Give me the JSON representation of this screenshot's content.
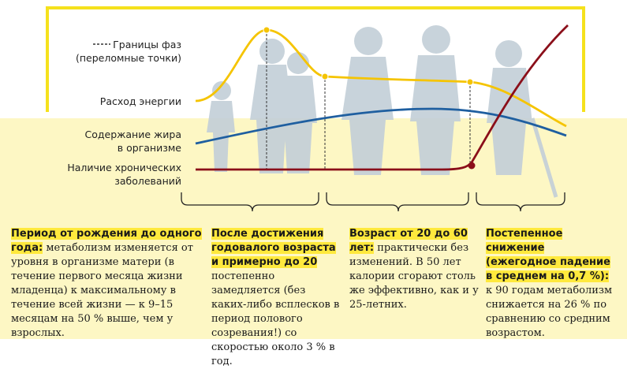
{
  "legend": {
    "phases_line1": "Границы фаз",
    "phases_line2": "(переломные точки)",
    "energy": "Расход энергии",
    "fat_line1": "Содержание жира",
    "fat_line2": "в организме",
    "chronic_line1": "Наличие хронических",
    "chronic_line2": "заболеваний"
  },
  "colors": {
    "energy": "#f5c400",
    "fat": "#1f5fa0",
    "chronic": "#8b0f1a",
    "highlight": "#ffe93d",
    "background_band": "#fdf7c4",
    "silhouette": "#c3cfd8"
  },
  "chart_data": {
    "type": "line",
    "series": [
      {
        "name": "Расход энергии",
        "trend": [
          "низкий при рождении",
          "пик около 1 года",
          "плато 20–60 лет",
          "снижение после 60"
        ]
      },
      {
        "name": "Содержание жира в организме",
        "trend": [
          "постепенный рост",
          "максимум в среднем возрасте",
          "снижение в старости"
        ]
      },
      {
        "name": "Наличие хронических заболеваний",
        "trend": [
          "низкое и стабильное до 60",
          "резкий рост после 60"
        ]
      }
    ]
  },
  "phases": [
    {
      "title": "Период от рождения до одного года:",
      "text": " метаболизм изменяется от уровня в организме матери (в течение первого месяца жизни младенца) к максимальному в течение всей жизни — к 9–15 месяцам на 50 % выше, чем у взрослых."
    },
    {
      "title": "После достижения годовалого возраста и примерно до 20",
      "text": " постепенно замедляется (без каких-либо всплесков в период полового созревания!) со скоростью около 3 % в год."
    },
    {
      "title": "Возраст от 20 до 60 лет:",
      "text": " практически без изменений. В 50 лет калории сгорают столь же эффективно, как и у 25-летних."
    },
    {
      "title": "Постепенное снижение (ежегодное падение в среднем на 0,7 %):",
      "text": " к 90 годам метаболизм снижается на 26 % по сравнению со средним возрастом."
    }
  ]
}
